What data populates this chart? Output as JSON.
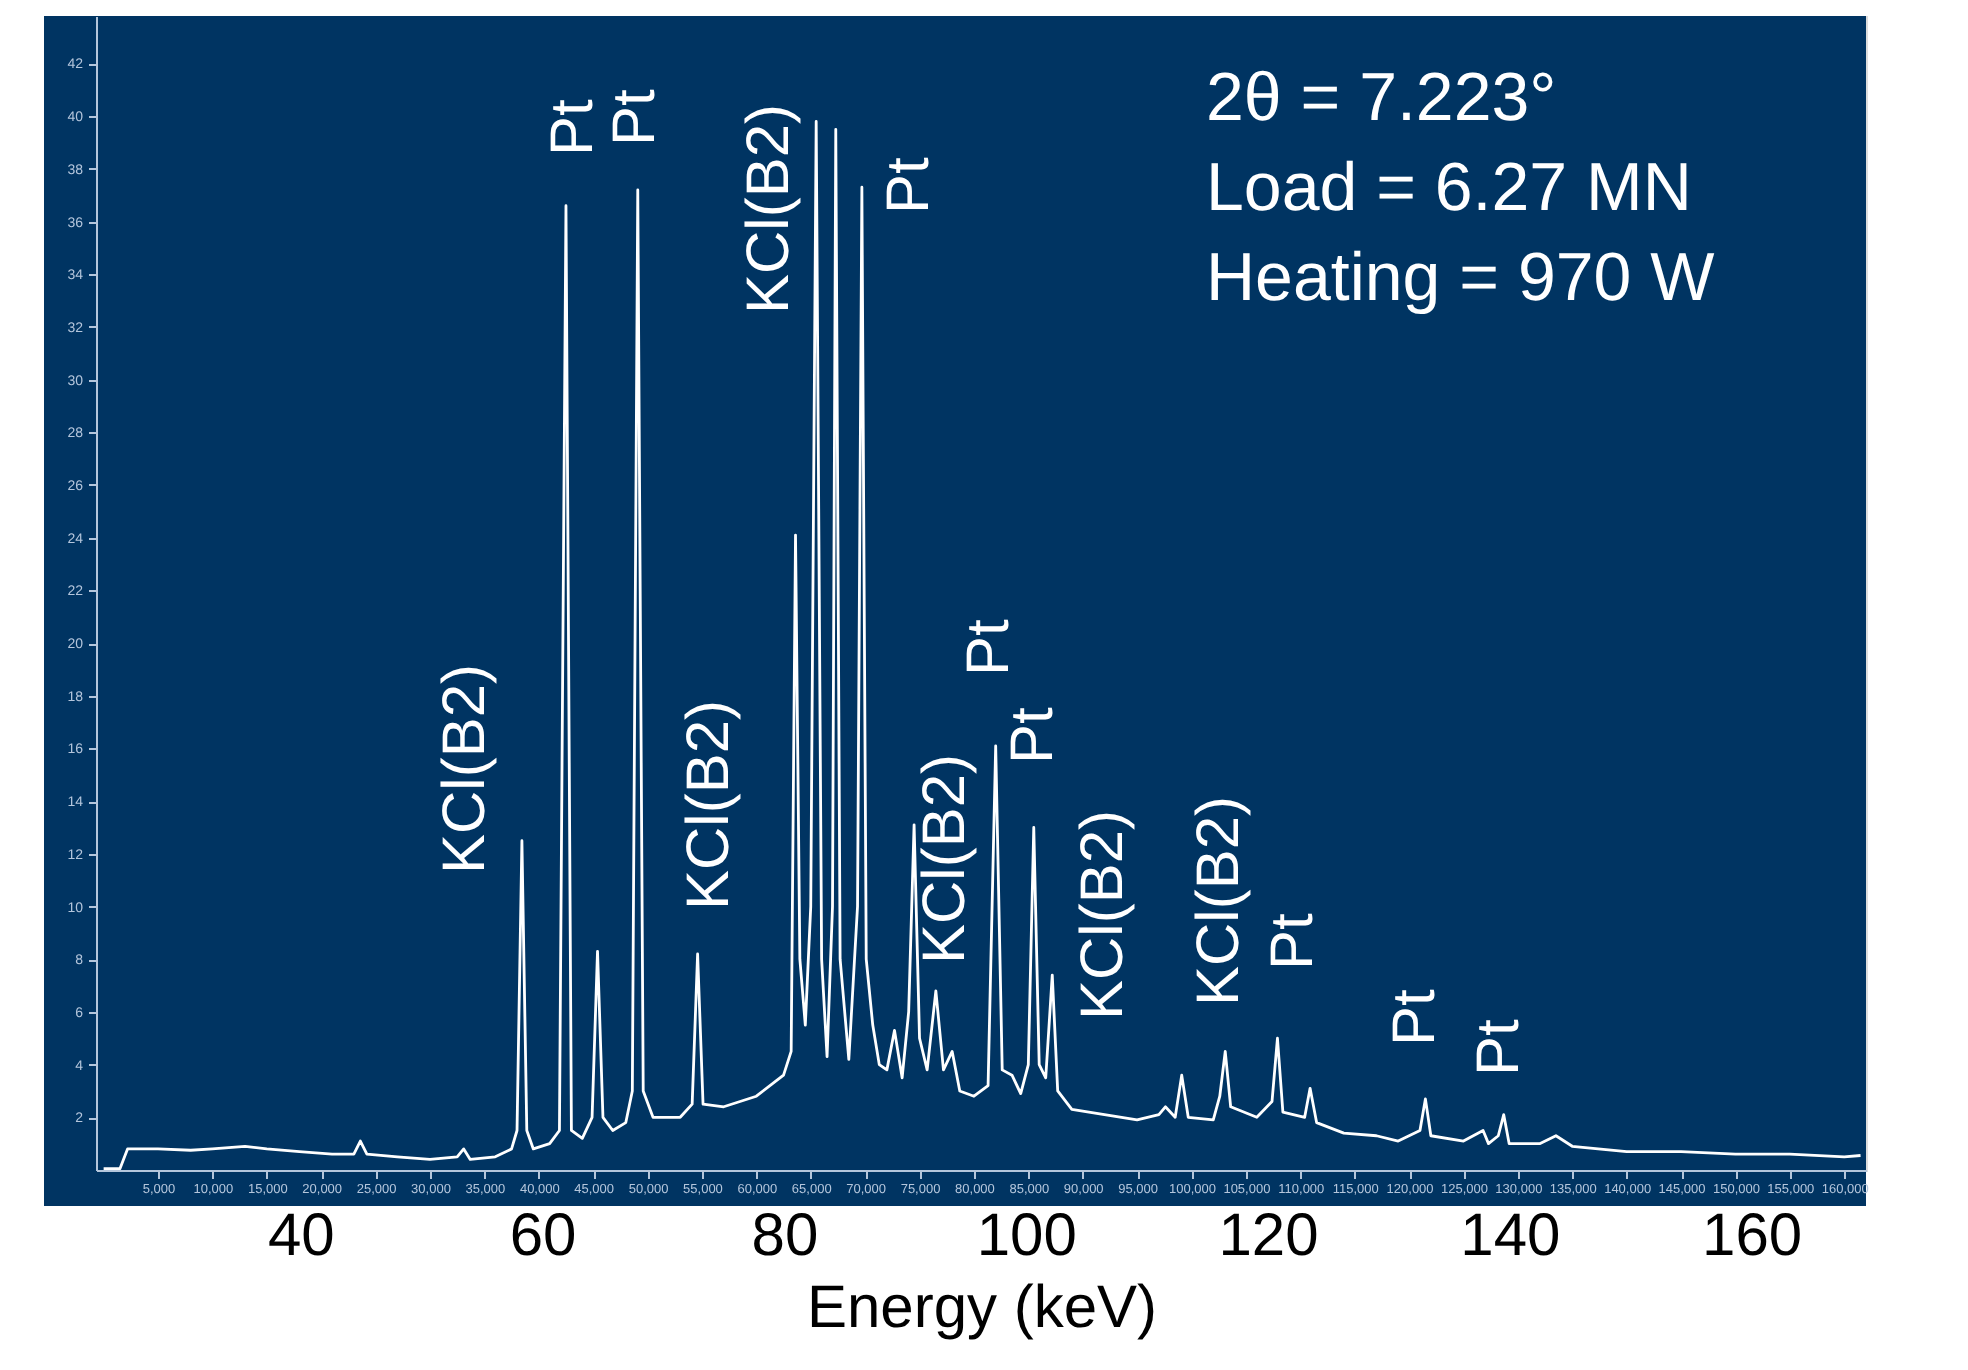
{
  "chart_data": {
    "type": "line",
    "xlim": [
      -700,
      162000
    ],
    "xticks": [
      {
        "value": 5000,
        "label": "5,000"
      },
      {
        "value": 10000,
        "label": "10,000"
      },
      {
        "value": 15000,
        "label": "15,000"
      },
      {
        "value": 20000,
        "label": "20,000"
      },
      {
        "value": 25000,
        "label": "25,000"
      },
      {
        "value": 30000,
        "label": "30,000"
      },
      {
        "value": 35000,
        "label": "35,000"
      },
      {
        "value": 40000,
        "label": "40,000"
      },
      {
        "value": 45000,
        "label": "45,000"
      },
      {
        "value": 50000,
        "label": "50,000"
      },
      {
        "value": 55000,
        "label": "55,000"
      },
      {
        "value": 60000,
        "label": "60,000"
      },
      {
        "value": 65000,
        "label": "65,000"
      },
      {
        "value": 70000,
        "label": "70,000"
      },
      {
        "value": 75000,
        "label": "75,000"
      },
      {
        "value": 80000,
        "label": "80,000"
      },
      {
        "value": 85000,
        "label": "85,000"
      },
      {
        "value": 90000,
        "label": "90,000"
      },
      {
        "value": 95000,
        "label": "95,000"
      },
      {
        "value": 100000,
        "label": "100,000"
      },
      {
        "value": 105000,
        "label": "105,000"
      },
      {
        "value": 110000,
        "label": "110,000"
      },
      {
        "value": 115000,
        "label": "115,000"
      },
      {
        "value": 120000,
        "label": "120,000"
      },
      {
        "value": 125000,
        "label": "125,000"
      },
      {
        "value": 130000,
        "label": "130,000"
      },
      {
        "value": 135000,
        "label": "135,000"
      },
      {
        "value": 140000,
        "label": "140,000"
      },
      {
        "value": 145000,
        "label": "145,000"
      },
      {
        "value": 150000,
        "label": "150,000"
      },
      {
        "value": 155000,
        "label": "155,000"
      },
      {
        "value": 160000,
        "label": "160,000"
      }
    ],
    "x2lim": [
      23.1,
      169.5
    ],
    "x2ticks": [
      40,
      60,
      80,
      100,
      120,
      140,
      160
    ],
    "x2label": "Energy (keV)",
    "ylim": [
      0,
      43.8
    ],
    "yticks": [
      2,
      4,
      6,
      8,
      10,
      12,
      14,
      16,
      18,
      20,
      22,
      24,
      26,
      28,
      30,
      32,
      34,
      36,
      38,
      40,
      42
    ],
    "series": [
      {
        "color": "#ffffff",
        "x": [
          0,
          1500,
          2200,
          5000,
          8000,
          10000,
          13000,
          15000,
          18000,
          21000,
          23000,
          23600,
          24200,
          27000,
          30000,
          32500,
          33100,
          33700,
          36000,
          37500,
          38000,
          38450,
          38900,
          39500,
          41000,
          41900,
          42500,
          43000,
          44000,
          44900,
          45400,
          45900,
          46800,
          48000,
          48600,
          49100,
          49600,
          50500,
          53000,
          54100,
          54600,
          55100,
          57000,
          60000,
          62500,
          63200,
          63600,
          64000,
          64500,
          65000,
          65500,
          66000,
          66500,
          67000,
          67300,
          67700,
          68500,
          69300,
          69700,
          70100,
          70700,
          71300,
          72000,
          72700,
          73400,
          74000,
          74500,
          75000,
          75700,
          76500,
          77200,
          78000,
          78700,
          80000,
          81300,
          82000,
          82600,
          83500,
          84300,
          85000,
          85500,
          86000,
          86600,
          87200,
          87700,
          89000,
          92000,
          95000,
          97000,
          97600,
          98500,
          99100,
          99700,
          102000,
          102600,
          103100,
          103600,
          106000,
          107400,
          107900,
          108400,
          110400,
          110900,
          111500,
          114000,
          117000,
          119000,
          121000,
          121500,
          122000,
          125000,
          126800,
          127300,
          128200,
          128700,
          129200,
          132000,
          133500,
          135000,
          140000,
          145000,
          150000,
          155000,
          160000,
          161500
        ],
        "values": [
          0.05,
          0.05,
          0.8,
          0.8,
          0.75,
          0.8,
          0.9,
          0.8,
          0.7,
          0.6,
          0.6,
          1.1,
          0.6,
          0.5,
          0.4,
          0.5,
          0.8,
          0.4,
          0.5,
          0.8,
          1.5,
          12.5,
          1.5,
          0.8,
          1.0,
          1.5,
          36.6,
          1.5,
          1.2,
          2.0,
          8.3,
          2.0,
          1.5,
          1.8,
          3.0,
          37.2,
          3.0,
          2.0,
          2.0,
          2.5,
          8.2,
          2.5,
          2.4,
          2.8,
          3.6,
          4.5,
          24.1,
          8.0,
          5.5,
          10,
          39.8,
          8,
          4.3,
          10,
          39.5,
          8,
          4.2,
          10,
          37.3,
          8,
          5.5,
          4.0,
          3.8,
          5.3,
          3.5,
          6,
          13.1,
          5,
          3.8,
          6.8,
          3.8,
          4.5,
          3.0,
          2.8,
          3.2,
          16.1,
          3.8,
          3.6,
          2.9,
          4,
          13.0,
          4,
          3.5,
          7.4,
          3.0,
          2.3,
          2.1,
          1.9,
          2.1,
          2.4,
          2.0,
          3.6,
          2.0,
          1.9,
          2.8,
          4.5,
          2.4,
          2.0,
          2.6,
          5.0,
          2.2,
          2.0,
          3.1,
          1.8,
          1.4,
          1.3,
          1.1,
          1.5,
          2.7,
          1.3,
          1.1,
          1.5,
          1.0,
          1.3,
          2.1,
          1.0,
          1.0,
          1.3,
          0.9,
          0.7,
          0.7,
          0.6,
          0.6,
          0.5,
          0.55
        ]
      }
    ],
    "annotations": [
      "KCl(B2)",
      "Pt",
      "Pt",
      "KCl(B2)",
      "KCl(B2)",
      "Pt",
      "KCl(B2)",
      "Pt",
      "Pt",
      "KCl(B2)",
      "KCl(B2)",
      "Pt",
      "Pt",
      "Pt",
      "2θ = 7.223°",
      "Load = 6.27 MN",
      "Heating = 970 W"
    ]
  }
}
